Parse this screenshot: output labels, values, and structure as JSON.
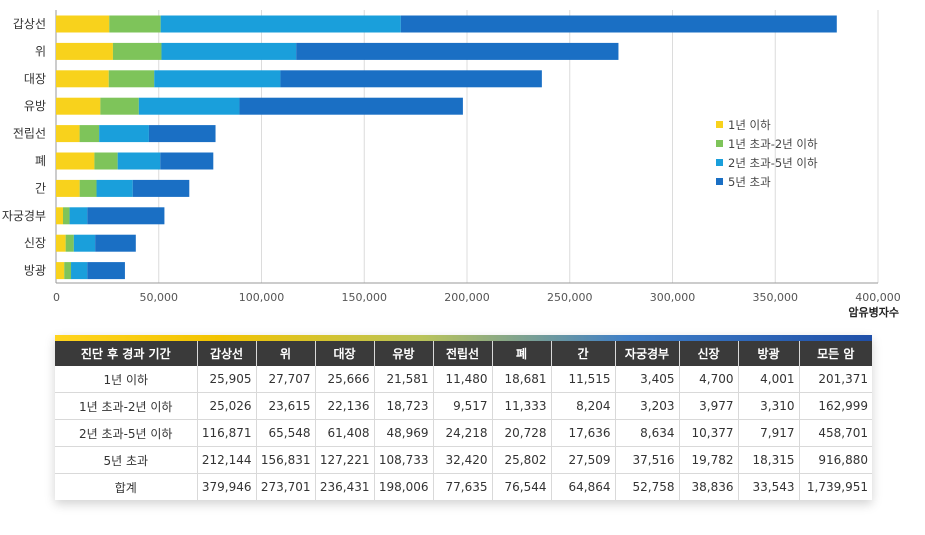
{
  "chart_data": {
    "type": "bar",
    "orientation": "horizontal",
    "stacked": true,
    "categories": [
      "갑상선",
      "위",
      "대장",
      "유방",
      "전립선",
      "폐",
      "간",
      "자궁경부",
      "신장",
      "방광"
    ],
    "series": [
      {
        "name": "1년 이하",
        "color": "#f8d21c",
        "values": [
          25905,
          27707,
          25666,
          21581,
          11480,
          18681,
          11515,
          3405,
          4700,
          4001
        ]
      },
      {
        "name": "1년 초과-2년 이하",
        "color": "#7ec45a",
        "values": [
          25026,
          23615,
          22136,
          18723,
          9517,
          11333,
          8204,
          3203,
          3977,
          3310
        ]
      },
      {
        "name": "2년 초과-5년 이하",
        "color": "#1a9fdb",
        "values": [
          116871,
          65548,
          61408,
          48969,
          24218,
          20728,
          17636,
          8634,
          10377,
          7917
        ]
      },
      {
        "name": "5년 초과",
        "color": "#1a6fc4",
        "values": [
          212144,
          156831,
          127221,
          108733,
          32420,
          25802,
          27509,
          37516,
          19782,
          18315
        ]
      }
    ],
    "xlim": [
      0,
      400000
    ],
    "x_ticks": [
      "0",
      "50,000",
      "100,000",
      "150,000",
      "200,000",
      "250,000",
      "300,000",
      "350,000",
      "400,000"
    ],
    "xlabel": "암유병자수",
    "grid": "vertical",
    "legend": "right"
  },
  "table": {
    "headers": [
      "진단 후 경과 기간",
      "갑상선",
      "위",
      "대장",
      "유방",
      "전립선",
      "폐",
      "간",
      "자궁경부",
      "신장",
      "방광",
      "모든 암"
    ],
    "rows": [
      [
        "1년 이하",
        "25,905",
        "27,707",
        "25,666",
        "21,581",
        "11,480",
        "18,681",
        "11,515",
        "3,405",
        "4,700",
        "4,001",
        "201,371"
      ],
      [
        "1년 초과-2년 이하",
        "25,026",
        "23,615",
        "22,136",
        "18,723",
        "9,517",
        "11,333",
        "8,204",
        "3,203",
        "3,977",
        "3,310",
        "162,999"
      ],
      [
        "2년 초과-5년 이하",
        "116,871",
        "65,548",
        "61,408",
        "48,969",
        "24,218",
        "20,728",
        "17,636",
        "8,634",
        "10,377",
        "7,917",
        "458,701"
      ],
      [
        "5년 초과",
        "212,144",
        "156,831",
        "127,221",
        "108,733",
        "32,420",
        "25,802",
        "27,509",
        "37,516",
        "19,782",
        "18,315",
        "916,880"
      ],
      [
        "합계",
        "379,946",
        "273,701",
        "236,431",
        "198,006",
        "77,635",
        "76,544",
        "64,864",
        "52,758",
        "38,836",
        "33,543",
        "1,739,951"
      ]
    ]
  }
}
